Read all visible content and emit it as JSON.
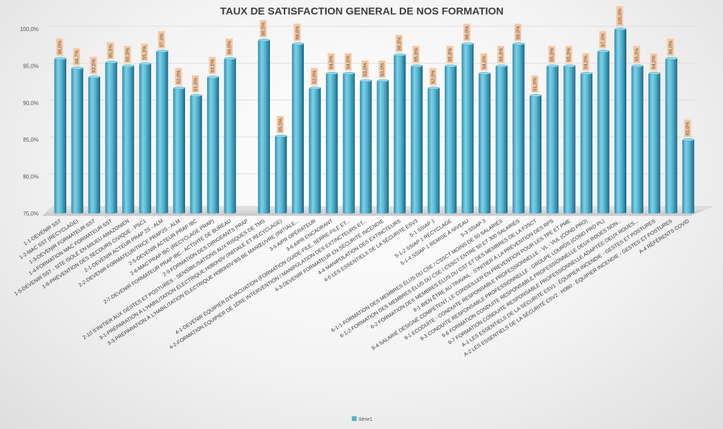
{
  "chart_data": {
    "type": "bar",
    "title": "TAUX DE SATISFACTION GENERAL DE NOS FORMATION",
    "xlabel": "",
    "ylabel": "",
    "ylim": [
      75,
      100
    ],
    "yticks": [
      "75,0%",
      "80,0%",
      "85,0%",
      "90,0%",
      "95,0%",
      "100,0%"
    ],
    "grid": true,
    "legend_position": "bottom",
    "bar_color": "#4FB3CF",
    "label_bg": "#F7C8A0",
    "categories": [
      "1-1-DEVENIR SST",
      "1-2-MAC SST (RECYCLAGE)",
      "1-3-DEVENIR FORMATEUR SST",
      "1-4-FORMATION MAC FORMATEUR SST",
      "1-5-DEVENIR SST - SITE ISOLÉ EN MILIEU AMAZONIEN",
      "1-6-PRÉVENTION DES SECOURS CIVIQUE - PSC1",
      "2-1-DEVENIR ACTEUR PRAP 2S - ALM",
      "2-2-DEVENIR FORMATEUR/TRICE PRAP2S - ALM",
      "2-5-DEVENIR ACTEUR PRAP IBC",
      "2-6-MAC PRAP IBC (RECYCLAGE PRAP)",
      "2-7-DEVENIR FORMATEUR PRAP IBC - ACTIVITÉ DE BUREAU",
      "2-9 FORMATION DES DIRIGEANTS PRAP",
      "2-10 S'INITIER AUX GESTES ET POSTURES - SENSIBILISATIONS AUX RISQUES DE TMS",
      "3-1-PRÉPARATION À L'HABILITATION ÉLECTRIQUE H0B0H0V (INITIALE ET RECYCLAGE)",
      "3-3-PRÉPARATION À L'HABILITATION ÉLECTRIQUE H0B0H0V BS BE MANŒUVRE (INITIALE...",
      "3-5 AIPR OPÉRATEUR",
      "3-6 AIPR ENCADRANT",
      "4-1-DEVENIR ÉQUIPIER D'ÉVACUATION (FORMATION GUIDE-FILE, SERRE-FILE ET...",
      "4-2-FORMATION ÉQUIPIER DE 1ÈRE INTERVENTION / MANIPULATION DES EXTINCTEURS ET...",
      "4-3-DEVENIR FORMATEUR EN SÉCURITÉ INCENDIE",
      "4-4 MANIPULATION DES EXTINCTEURS",
      "4-5 LES ESSENTIELS DE LA SÉCURITÉ ESV3",
      "5-1 SSIAP 1",
      "5-1-2 SSIAP 1 RECYCLAGE",
      "5-1-4 SSIAP 1 REMISE À NIVEAU",
      "5-3 SSIAP 3",
      "6-1-1-FORMATION DES MEMBRES ÉLUS DU CSE / CSSCT MOINS DE 50 SALARIÉS",
      "6-1-2-FORMATION DES MEMBRES ÉLUS DU CSE / CSSCT ENTRE 50 ET 300 SALARIÉS",
      "6-2 FORMATION DES MEMBRES ÉLUS DU CST ET DES MEMBRES DE LA F3SCT",
      "8-1-BIEN ÊTRE AU TRAVAIL - S'INITIER À LA PRÉVENTION DES RPS",
      "8-4 SALARIÉ DÉSIGNÉ COMPÉTENT, LE CONSEILLER EN PRÉVENTION POUR LES TPE ET PME",
      "9-1 ECODUITE - CONDUITE RESPONSABLE PROFESSIONNELLE - VL - VUL (COND PRO)",
      "9-3 CONDUITE RESPONSABLE PROFESSIONNELLE - GROUPE LOURDS (COND PRO PL)",
      "9-6 FORMATION CONDUITE RESPONSABLE PROFESSIONNELLE DEUX ROUES NON...",
      "9-7 FORMATION CONDUITE RESPONSABLE PROFESSIONNELLE ADAPTÉE-DEUX ROUES...",
      "A-1 LES ESSENTIELS DE LA SÉCURITÉ ESV1 : ÉQUIPIER INCENDIE - GESTES ET POSTURES",
      "A-2 LES ESSENTIELS DE LA SÉCURITÉ ESV2 : H0B0 - ÉQUIPIER INCENDIE - GESTES ET POSTURES",
      "A-4 RÉFÉRENTS COVID"
    ],
    "series": [
      {
        "name": "Série1",
        "values": [
          96.0,
          94.7,
          93.5,
          95.5,
          95.0,
          95.3,
          97.0,
          92.0,
          91.0,
          93.5,
          96.0,
          null,
          98.5,
          85.5,
          98.0,
          92.0,
          94.0,
          94.0,
          93.0,
          93.0,
          96.5,
          95.0,
          92.0,
          95.0,
          98.0,
          94.0,
          95.0,
          98.0,
          91.0,
          95.0,
          95.0,
          94.0,
          97.0,
          100.0,
          95.0,
          94.0,
          96.0,
          85.0
        ],
        "labels": [
          "96,0%",
          "94,7%",
          "93,5%",
          "95,5%",
          "95,0%",
          "95,3%",
          "97,0%",
          "92,0%",
          "91,0%",
          "93,5%",
          "96,0%",
          "",
          "98,5%",
          "85,5%",
          "98,0%",
          "92,0%",
          "94,0%",
          "94,0%",
          "93,0%",
          "93,0%",
          "96,5%",
          "95,0%",
          "92,0%",
          "95,0%",
          "98,0%",
          "94,0%",
          "95,0%",
          "98,0%",
          "91,0%",
          "95,0%",
          "95,0%",
          "94,0%",
          "97,0%",
          "100,0%",
          "95,0%",
          "94,0%",
          "96,0%",
          "85,0%"
        ]
      }
    ]
  }
}
